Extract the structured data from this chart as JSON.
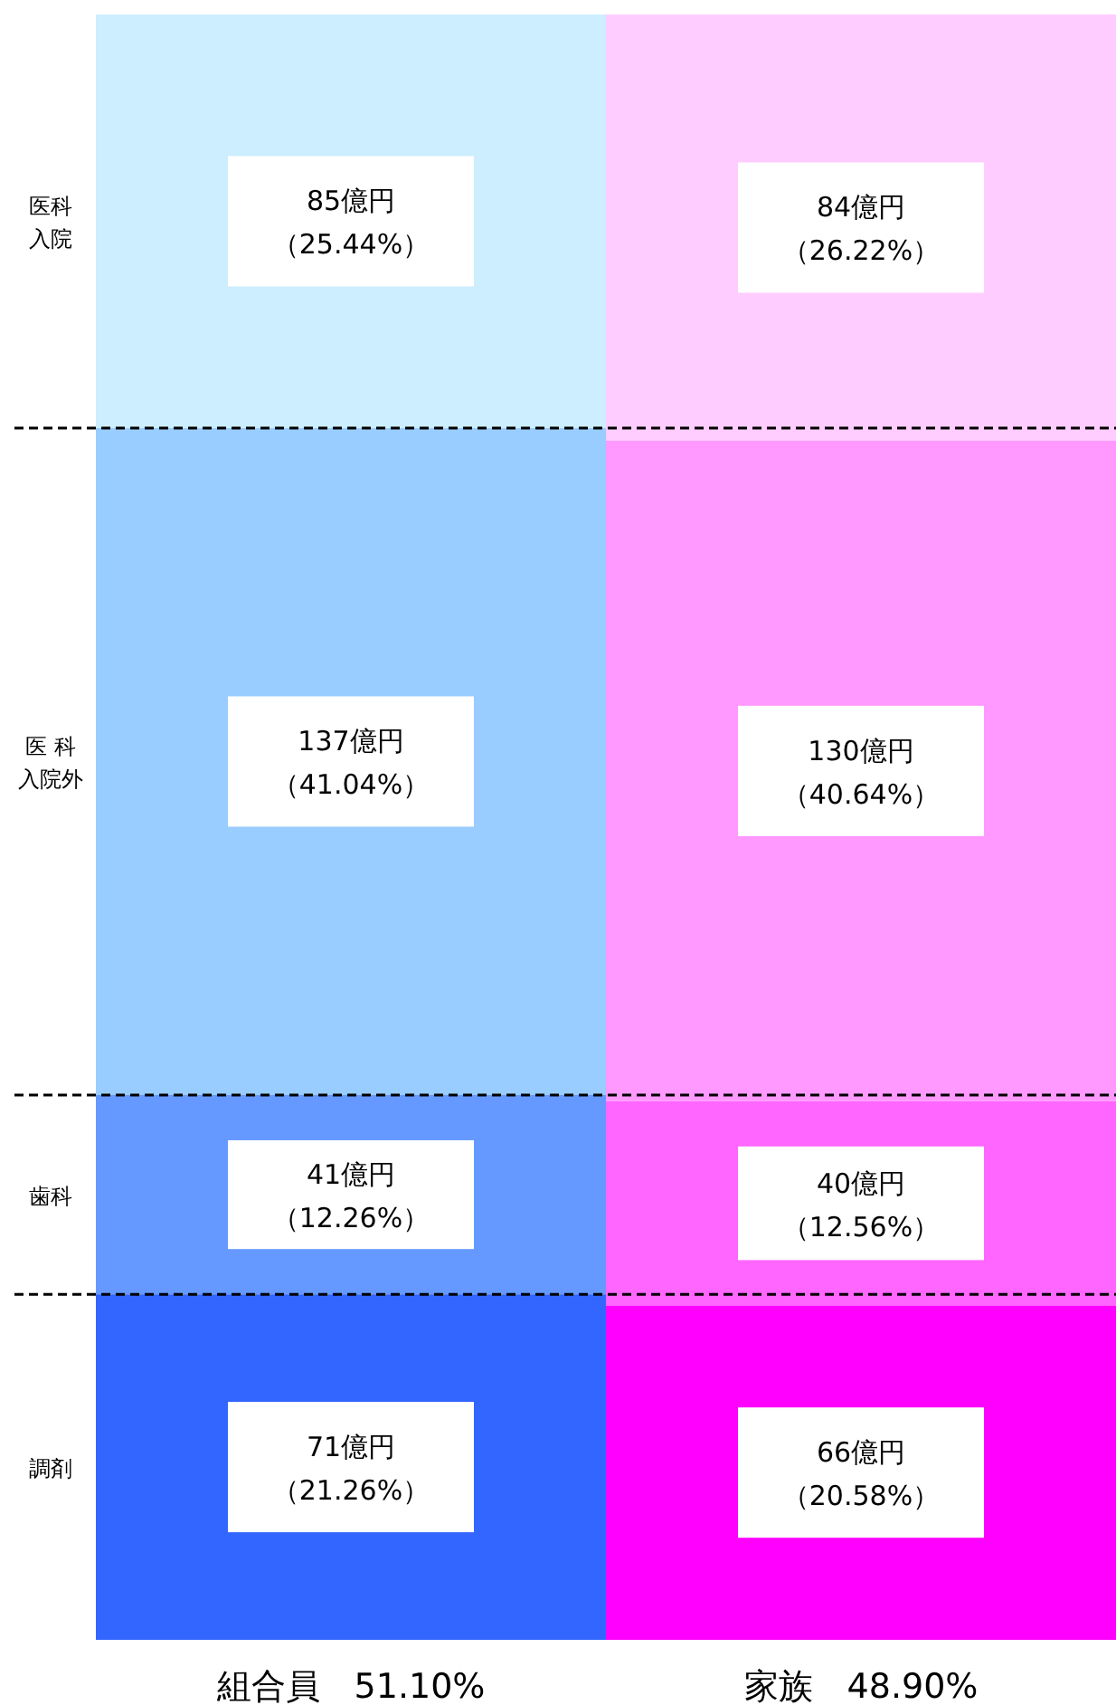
{
  "chart_data": {
    "type": "bar",
    "stacked": true,
    "legend": false,
    "tick_labels": "x",
    "categories": [
      "組合員　51.10%",
      "家族　48.90%"
    ],
    "series": [
      {
        "name": "調剤",
        "colors": [
          "#3366ff",
          "#ff00ff"
        ],
        "values": [
          21.26,
          20.58
        ],
        "value_labels": [
          "71億円（21.26%）",
          "66億円（20.58%）"
        ]
      },
      {
        "name": "歯科",
        "colors": [
          "#6699ff",
          "#ff66ff"
        ],
        "values": [
          12.26,
          12.56
        ],
        "value_labels": [
          "41億円（12.26%）",
          "40億円（12.56%）"
        ]
      },
      {
        "name": "医 科入院外",
        "colors": [
          "#99ccff",
          "#ff99ff"
        ],
        "values": [
          41.04,
          40.64
        ],
        "value_labels": [
          "137億円（41.04%）",
          "130億円（40.64%）"
        ]
      },
      {
        "name": "医科入院",
        "colors": [
          "#cceeff",
          "#ffccff"
        ],
        "values": [
          25.44,
          26.22
        ],
        "value_labels": [
          "85億円（25.44%）",
          "84億円（26.22%）"
        ]
      }
    ]
  }
}
